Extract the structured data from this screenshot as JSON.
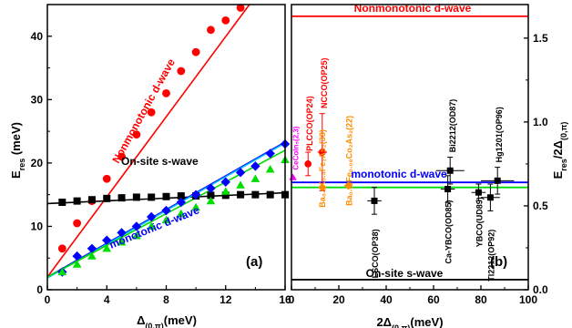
{
  "chart_data": [
    {
      "type": "scatter",
      "panel_label": "(a)",
      "xlabel": "Δ",
      "xlabel_sub": "(0,π)",
      "xlabel_unit": "(meV)",
      "ylabel": "E",
      "ylabel_sub": "res",
      "ylabel_unit": " (meV)",
      "xlim": [
        0,
        16
      ],
      "ylim": [
        0,
        45
      ],
      "xticks": [
        0,
        4,
        8,
        12,
        16
      ],
      "yticks": [
        0,
        10,
        20,
        30,
        40
      ],
      "series": [
        {
          "name": "Nonmonotonic d-wave",
          "color": "#ff0000",
          "marker": "circle",
          "x": [
            1,
            2,
            3,
            4,
            5,
            6,
            7,
            8,
            9,
            10,
            11,
            12,
            13
          ],
          "y": [
            6.5,
            10.5,
            14,
            17.5,
            21,
            24.5,
            28,
            31,
            34.5,
            37.5,
            41,
            42.5,
            44.5
          ],
          "fit": [
            [
              0,
              2
            ],
            [
              13.6,
              45
            ]
          ]
        },
        {
          "name": "On-site s-wave",
          "color": "#000000",
          "marker": "square",
          "x": [
            1,
            2,
            3,
            4,
            5,
            6,
            7,
            8,
            9,
            10,
            11,
            12,
            13,
            14,
            15,
            16
          ],
          "y": [
            13.8,
            14,
            14.2,
            14.4,
            14.5,
            14.6,
            14.6,
            14.7,
            14.8,
            14.8,
            14.9,
            14.9,
            15,
            15,
            15,
            15
          ],
          "fit": [
            [
              0,
              13.6
            ],
            [
              16,
              15.3
            ]
          ]
        },
        {
          "name": "monotonic d-wave",
          "color": "#0000ff",
          "marker": "diamond",
          "x": [
            1,
            2,
            3,
            4,
            5,
            6,
            7,
            8,
            9,
            10,
            11,
            12,
            13,
            14,
            15,
            16
          ],
          "y": [
            2.8,
            5.3,
            6.5,
            7.8,
            9,
            10,
            11.5,
            12.5,
            13.8,
            15,
            16,
            17,
            18.5,
            19.5,
            21.5,
            23
          ],
          "fit": [
            [
              0,
              2
            ],
            [
              16,
              23.3
            ]
          ]
        },
        {
          "name": "",
          "color": "#00dd00",
          "marker": "triangle",
          "x": [
            1,
            2,
            3,
            4,
            5,
            6,
            7,
            8,
            9,
            10,
            11,
            12,
            13,
            14,
            15,
            16
          ],
          "y": [
            2.8,
            4,
            5.3,
            6.5,
            7.5,
            8.5,
            10,
            11,
            12,
            13,
            14,
            15.5,
            16.5,
            17.5,
            19,
            20.5
          ],
          "fit": [
            [
              0,
              2
            ],
            [
              16,
              22
            ]
          ]
        }
      ],
      "annotations": [
        {
          "text": "Nonmonotonic d-wave",
          "color": "#ff0000"
        },
        {
          "text": "On-site s-wave",
          "color": "#000000"
        },
        {
          "text": "monotonic d-wave",
          "color": "#0000ff"
        }
      ]
    },
    {
      "type": "scatter",
      "panel_label": "(b)",
      "xlabel": "2Δ",
      "xlabel_sub": "(0,π)",
      "xlabel_unit": "(meV)",
      "ylabel": "E",
      "ylabel_sub": "res",
      "ylabel_mid": "/2Δ",
      "ylabel_sub2": "(0,π)",
      "xlim": [
        0,
        100
      ],
      "ylim": [
        0,
        1.7
      ],
      "xticks": [
        0,
        20,
        40,
        60,
        80,
        100
      ],
      "yticks": [
        0.0,
        0.5,
        1.0,
        1.5
      ],
      "ytick_labels": [
        "0.0",
        "0.5",
        "1.0",
        "1.5"
      ],
      "hlines": [
        {
          "label": "Nonmonotonic d-wave",
          "y": 1.63,
          "color": "#ff0000"
        },
        {
          "label": "monotonic d-wave",
          "y": 0.64,
          "color": "#0000ff"
        },
        {
          "label": "",
          "y": 0.61,
          "color": "#00dd00"
        },
        {
          "label": "On-site s-wave",
          "y": 0.06,
          "color": "#000000"
        }
      ],
      "points": [
        {
          "label": "CeCoIn₅(2,3)",
          "x": 0.6,
          "y": 0.67,
          "xerr": 0,
          "yerr": 0,
          "color": "#ff00ff",
          "marker": "triangle"
        },
        {
          "label": "PLCCO(OP24)",
          "x": 7,
          "y": 0.75,
          "xerr": 0,
          "yerr": 0.07,
          "color": "#ff0000",
          "marker": "circle"
        },
        {
          "label": "NCCO(OP25)",
          "x": 13,
          "y": 0.82,
          "xerr": 2,
          "yerr": 0.23,
          "color": "#ff0000",
          "marker": "circle"
        },
        {
          "label": "Ba₀.₆K₀.₄Fe₂As₂(38)",
          "x": 13,
          "y": 0.61,
          "xerr": 0,
          "yerr": 0,
          "color": "#ff8c00",
          "marker": "diamond"
        },
        {
          "label": "Ba₀.₉₂Fe₀.₀₈Co₂As₂(22)",
          "x": 24,
          "y": 0.62,
          "xerr": 0,
          "yerr": 0,
          "color": "#ff8c00",
          "marker": "diamond"
        },
        {
          "label": "LSCO(OP38)",
          "x": 35,
          "y": 0.53,
          "xerr": 3,
          "yerr": 0.08,
          "color": "#000000",
          "marker": "square"
        },
        {
          "label": "Ca-YBCO(OD85)",
          "x": 66,
          "y": 0.6,
          "xerr": 3,
          "yerr": 0.08,
          "color": "#000000",
          "marker": "square"
        },
        {
          "label": "Bi2212(OD87)",
          "x": 67,
          "y": 0.71,
          "xerr": 6,
          "yerr": 0.08,
          "color": "#000000",
          "marker": "square"
        },
        {
          "label": "YBCO(UD89)",
          "x": 79,
          "y": 0.58,
          "xerr": 3,
          "yerr": 0.05,
          "color": "#000000",
          "marker": "square"
        },
        {
          "label": "Tl2212(OP92)",
          "x": 84,
          "y": 0.55,
          "xerr": 4,
          "yerr": 0.08,
          "color": "#000000",
          "marker": "square"
        },
        {
          "label": "Hg1201(OP96)",
          "x": 87,
          "y": 0.65,
          "xerr": 7,
          "yerr": 0.08,
          "color": "#000000",
          "marker": "square"
        }
      ]
    }
  ]
}
